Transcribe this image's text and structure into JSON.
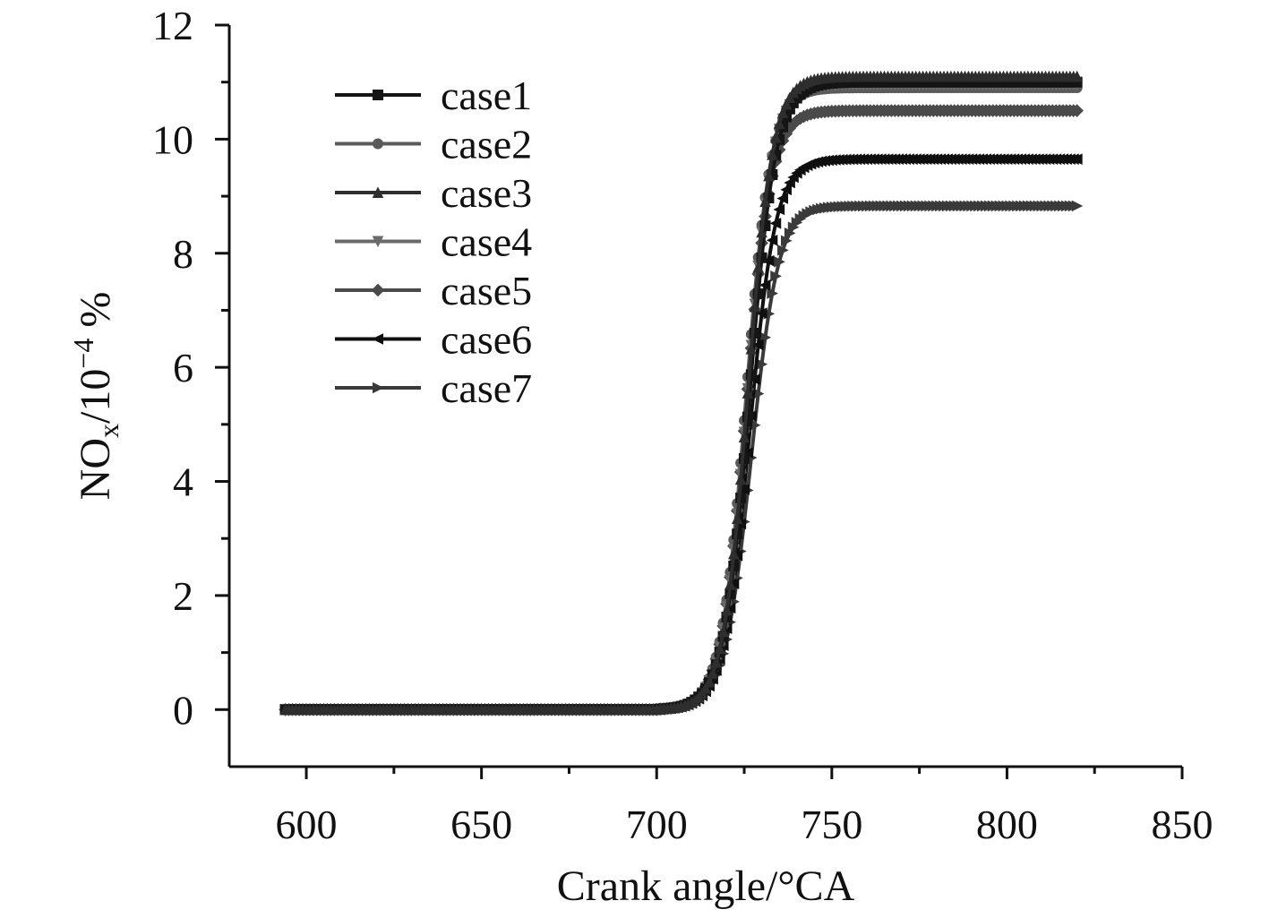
{
  "chart_data": {
    "type": "line",
    "xlabel": "Crank angle/°CA",
    "ylabel_parts": {
      "main": "NO",
      "sub": "x",
      "unit": "/10",
      "exp": "−4",
      "suffix": " %"
    },
    "xlim": [
      578,
      850
    ],
    "ylim": [
      -1,
      12
    ],
    "xticks": [
      "600",
      "650",
      "700",
      "750",
      "800",
      "850"
    ],
    "yticks": [
      "0",
      "2",
      "4",
      "6",
      "8",
      "10",
      "12"
    ],
    "legend_placement": "top-left",
    "grid": false,
    "x_start": 594,
    "x_end": 820,
    "series": [
      {
        "name": "case1",
        "marker": "square",
        "color": "#151515",
        "final_value": 11.0,
        "midpoint": 726.5,
        "steepness": 0.27
      },
      {
        "name": "case2",
        "marker": "circle",
        "color": "#5a5a5a",
        "final_value": 10.9,
        "midpoint": 725.5,
        "steepness": 0.28
      },
      {
        "name": "case3",
        "marker": "triangle-up",
        "color": "#2e2e2e",
        "final_value": 11.1,
        "midpoint": 726.0,
        "steepness": 0.28
      },
      {
        "name": "case4",
        "marker": "triangle-down",
        "color": "#6a6a6a",
        "final_value": 10.95,
        "midpoint": 725.8,
        "steepness": 0.28
      },
      {
        "name": "case5",
        "marker": "diamond",
        "color": "#4a4a4a",
        "final_value": 10.5,
        "midpoint": 725.5,
        "steepness": 0.28
      },
      {
        "name": "case6",
        "marker": "triangle-left",
        "color": "#0f0f0f",
        "final_value": 9.65,
        "midpoint": 726.5,
        "steepness": 0.27
      },
      {
        "name": "case7",
        "marker": "triangle-right",
        "color": "#3a3a3a",
        "final_value": 8.83,
        "midpoint": 727.0,
        "steepness": 0.26
      }
    ]
  }
}
